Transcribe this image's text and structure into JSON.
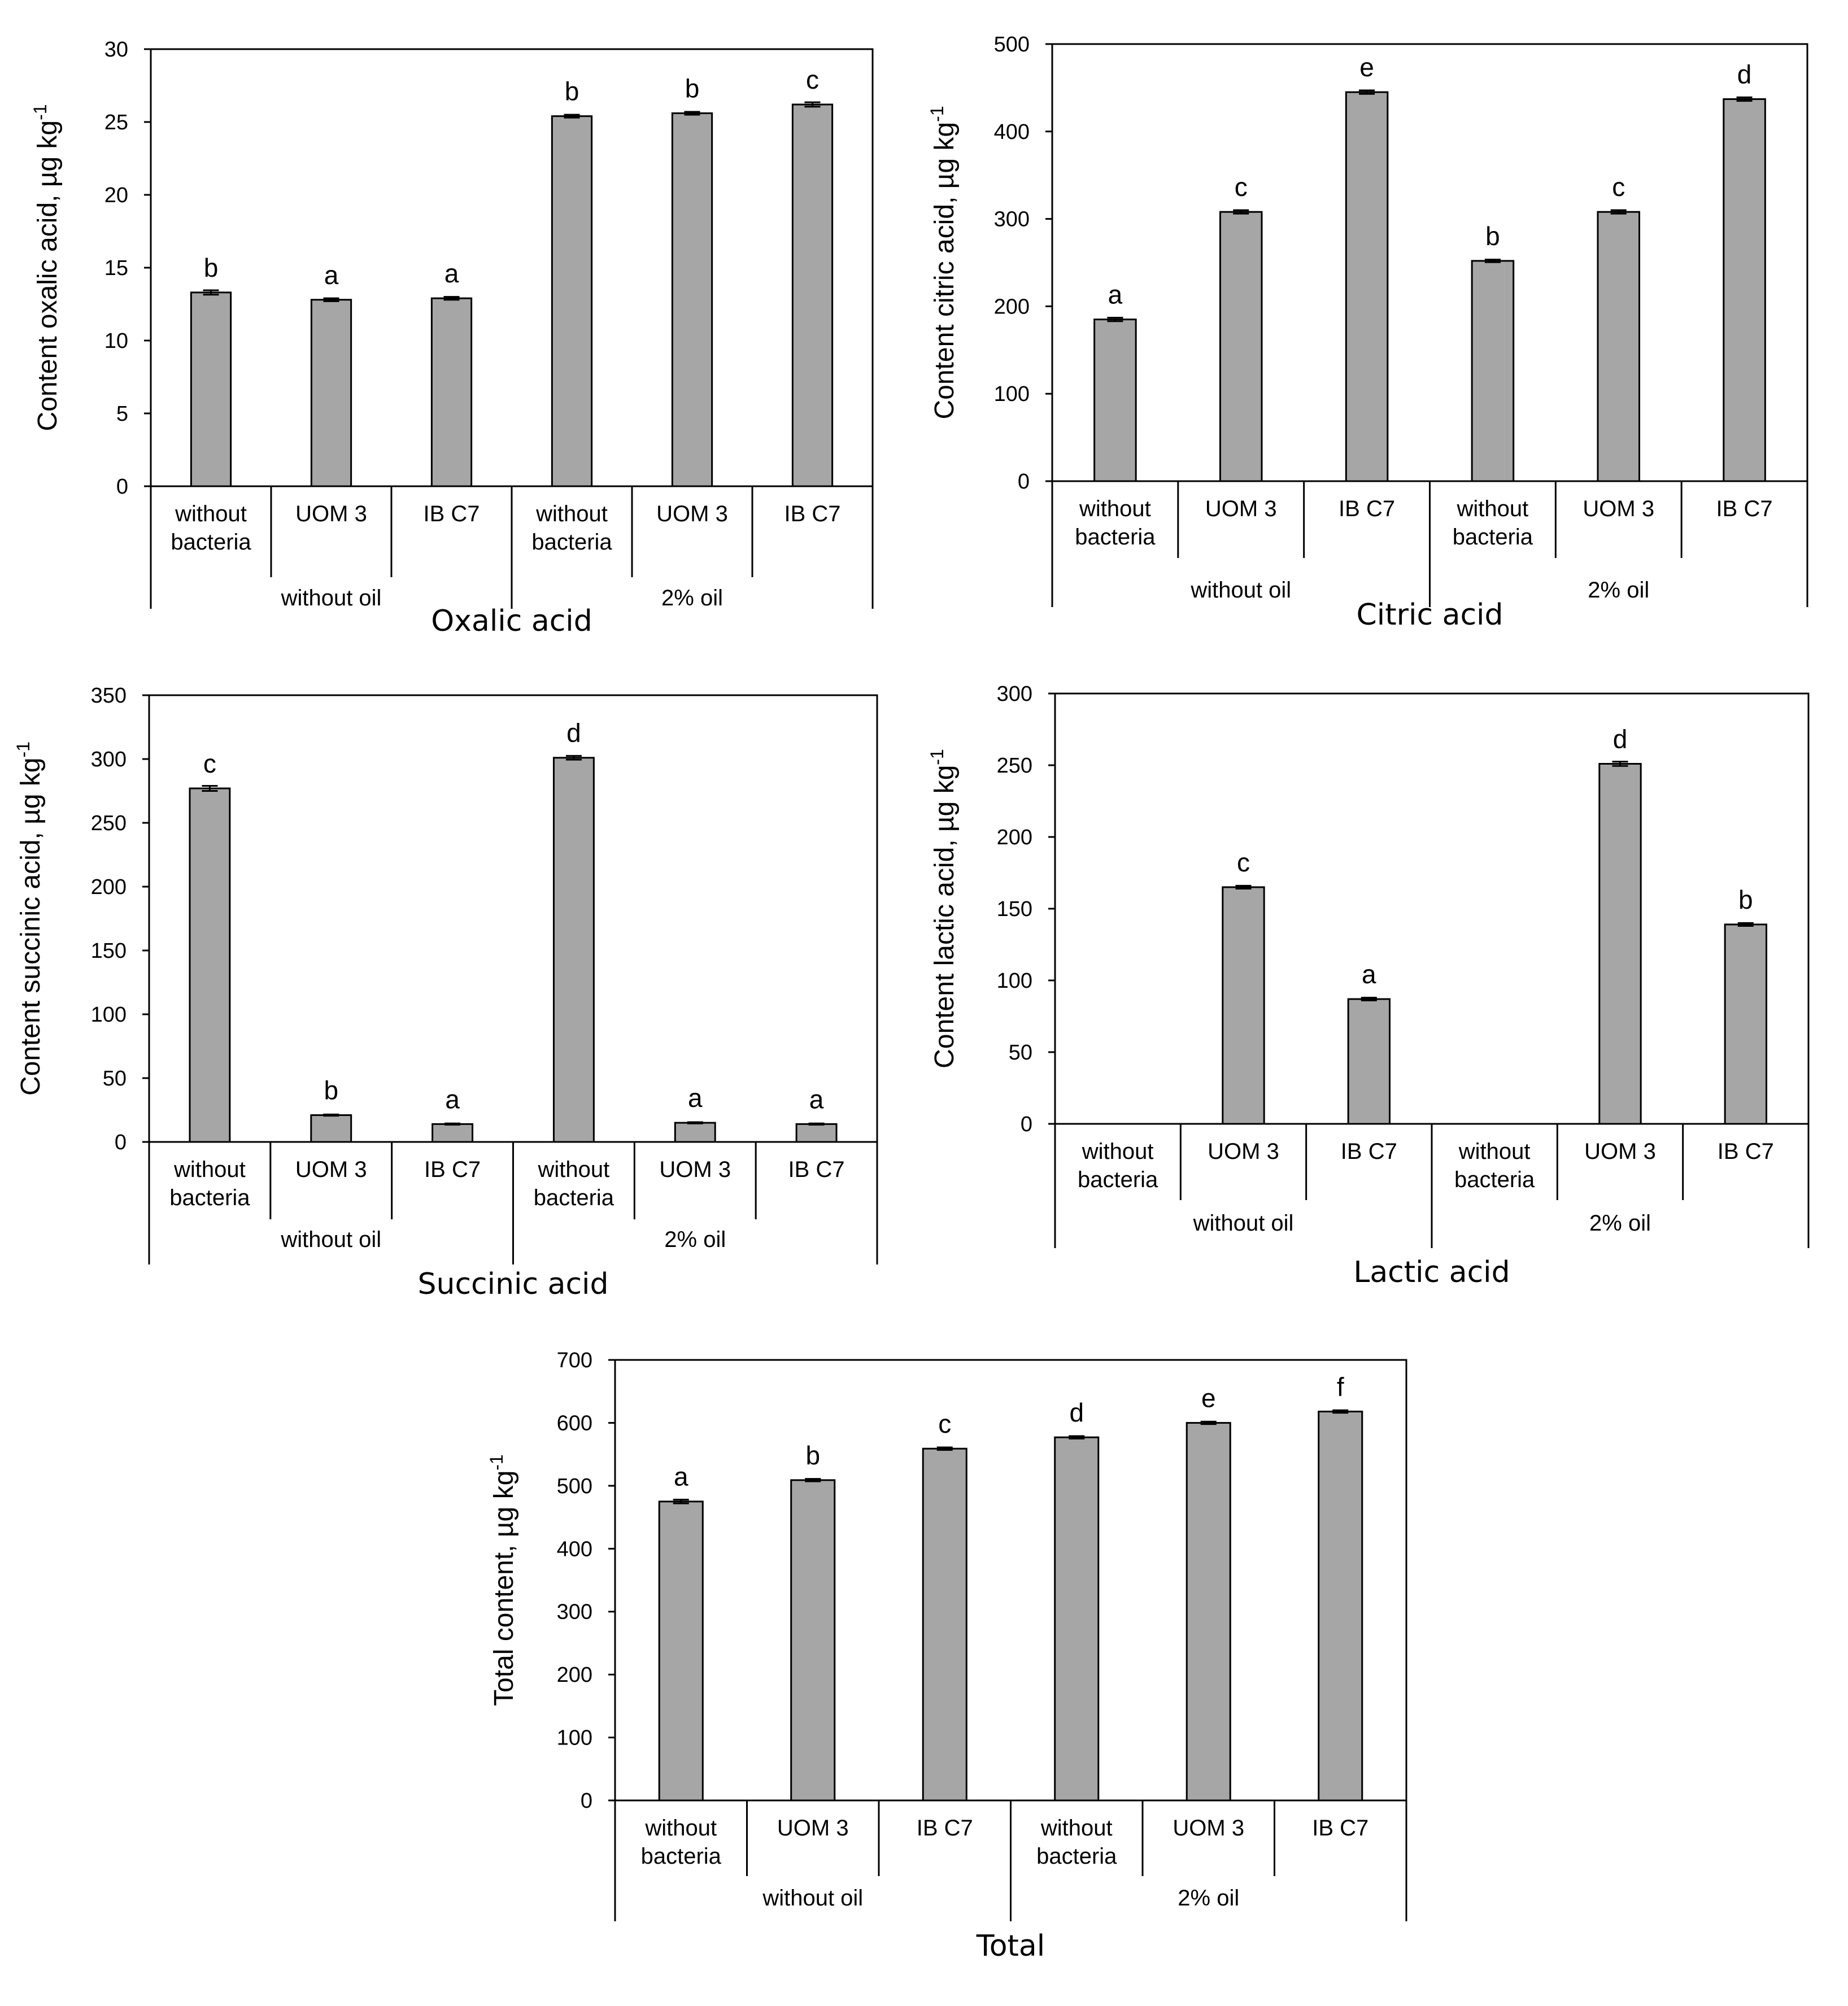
{
  "figure": {
    "group_labels": [
      "without oil",
      "2% oil"
    ]
  },
  "chart_data": [
    {
      "id": "oxalic",
      "type": "bar",
      "title": "Oxalic acid",
      "ylabel": "Content oxalic acid, µg kg-1",
      "ylabel_main": "Content oxalic acid, µg kg",
      "ylabel_sup": "-1",
      "ylim": [
        0,
        30
      ],
      "yticks": [
        0,
        5,
        10,
        15,
        20,
        25,
        30
      ],
      "categories": [
        "without bacteria",
        "UOM 3",
        "IB C7",
        "without bacteria",
        "UOM 3",
        "IB C7"
      ],
      "groups": [
        "without oil",
        "2% oil"
      ],
      "values": [
        13.3,
        12.8,
        12.9,
        25.4,
        25.6,
        26.2
      ],
      "errors": [
        0.15,
        0.1,
        0.1,
        0.1,
        0.1,
        0.15
      ],
      "letters": [
        "b",
        "a",
        "a",
        "b",
        "b",
        "c"
      ]
    },
    {
      "id": "citric",
      "type": "bar",
      "title": "Citric acid",
      "ylabel": "Content citric acid, µg kg-1",
      "ylabel_main": "Content citric acid, µg kg",
      "ylabel_sup": "-1",
      "ylim": [
        0,
        500
      ],
      "yticks": [
        0,
        100,
        200,
        300,
        400,
        500
      ],
      "categories": [
        "without bacteria",
        "UOM 3",
        "IB C7",
        "without bacteria",
        "UOM 3",
        "IB C7"
      ],
      "groups": [
        "without oil",
        "2% oil"
      ],
      "values": [
        185,
        308,
        445,
        252,
        308,
        437
      ],
      "errors": [
        2,
        2,
        2,
        1.5,
        2,
        2
      ],
      "letters": [
        "a",
        "c",
        "e",
        "b",
        "c",
        "d"
      ]
    },
    {
      "id": "succinic",
      "type": "bar",
      "title": "Succinic acid",
      "ylabel": "Content succinic acid, µg kg-1",
      "ylabel_main": "Content succinic acid, µg kg",
      "ylabel_sup": "-1",
      "ylim": [
        0,
        350
      ],
      "yticks": [
        0,
        50,
        100,
        150,
        200,
        250,
        300,
        350
      ],
      "categories": [
        "without bacteria",
        "UOM 3",
        "IB C7",
        "without bacteria",
        "UOM 3",
        "IB C7"
      ],
      "groups": [
        "without oil",
        "2% oil"
      ],
      "values": [
        277,
        21,
        14,
        301,
        15,
        14
      ],
      "errors": [
        2,
        0.5,
        0.5,
        1.5,
        0.5,
        0.5
      ],
      "letters": [
        "c",
        "b",
        "a",
        "d",
        "a",
        "a"
      ]
    },
    {
      "id": "lactic",
      "type": "bar",
      "title": "Lactic acid",
      "ylabel": "Content lactic acid, µg kg-1",
      "ylabel_main": "Content lactic acid, µg kg",
      "ylabel_sup": "-1",
      "ylim": [
        0,
        300
      ],
      "yticks": [
        0,
        50,
        100,
        150,
        200,
        250,
        300
      ],
      "categories": [
        "without bacteria",
        "UOM 3",
        "IB C7",
        "without bacteria",
        "UOM 3",
        "IB C7"
      ],
      "groups": [
        "without oil",
        "2% oil"
      ],
      "values": [
        0,
        165,
        87,
        0,
        251,
        139
      ],
      "errors": [
        0,
        1,
        1,
        0,
        1.5,
        1
      ],
      "letters": [
        "",
        "c",
        "a",
        "",
        "d",
        "b"
      ]
    },
    {
      "id": "total",
      "type": "bar",
      "title": "Total",
      "ylabel": "Total content, µg kg-1",
      "ylabel_main": "Total content, µg kg",
      "ylabel_sup": "-1",
      "ylim": [
        0,
        700
      ],
      "yticks": [
        0,
        100,
        200,
        300,
        400,
        500,
        600,
        700
      ],
      "categories": [
        "without bacteria",
        "UOM 3",
        "IB C7",
        "without bacteria",
        "UOM 3",
        "IB C7"
      ],
      "groups": [
        "without oil",
        "2% oil"
      ],
      "values": [
        475,
        509,
        559,
        577,
        600,
        618
      ],
      "errors": [
        3,
        2,
        2,
        2,
        2,
        2
      ],
      "letters": [
        "a",
        "b",
        "c",
        "d",
        "e",
        "f"
      ]
    }
  ]
}
